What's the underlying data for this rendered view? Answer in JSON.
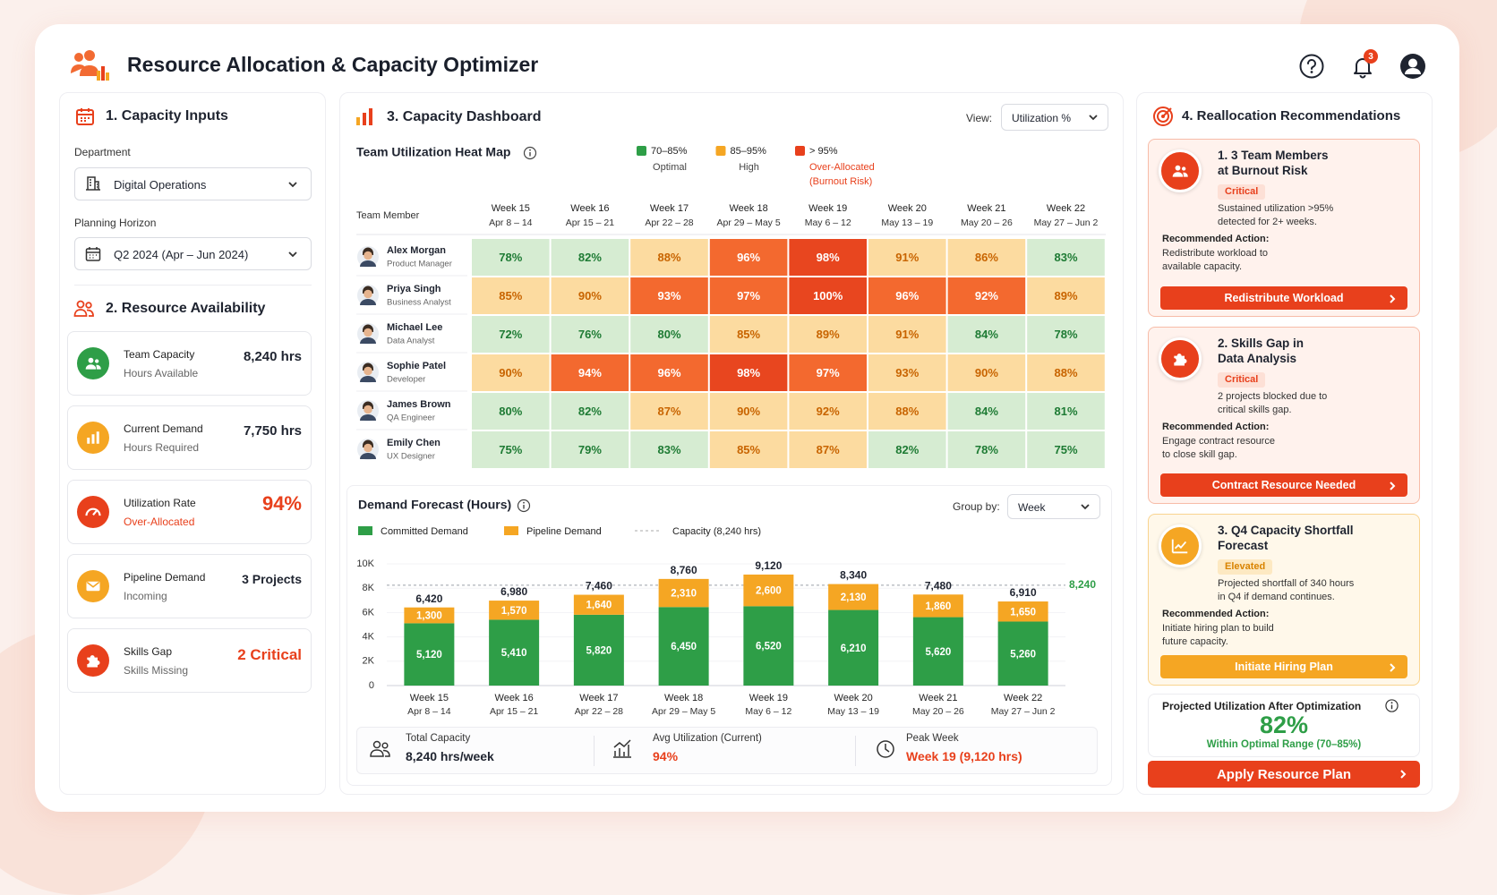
{
  "header": {
    "title": "Resource Allocation & Capacity Optimizer",
    "notifications": "3"
  },
  "inputs": {
    "title": "1. Capacity Inputs",
    "fields": [
      {
        "label": "Department",
        "value": "Digital Operations"
      },
      {
        "label": "Planning Horizon",
        "value": "Q2 2024 (Apr – Jun 2024)"
      }
    ]
  },
  "availability": {
    "title": "2. Resource Availability",
    "cards": [
      {
        "label": "Team Capacity",
        "sublabel": "Hours Available",
        "value": "8,240 hrs"
      },
      {
        "label": "Current Demand",
        "sublabel": "Hours Required",
        "value": "7,750 hrs"
      },
      {
        "label": "Utilization Rate",
        "sublabel": "Over-Allocated",
        "value": "94%"
      },
      {
        "label": "Pipeline Demand",
        "sublabel": "Incoming",
        "value": "3 Projects"
      },
      {
        "label": "Skills Gap",
        "sublabel": "Skills Missing",
        "value": "2 Critical"
      }
    ]
  },
  "dashboard": {
    "title": "3. Capacity Dashboard",
    "view_label": "View:",
    "view": "Utilization %"
  },
  "chart_data": [
    {
      "type": "heatmap",
      "title": "Team Utilization Heat Map",
      "row_header": "Team Member",
      "legend": [
        {
          "color": "#2e9e47",
          "label": "70–85%",
          "sublabel": [
            "Optimal"
          ]
        },
        {
          "color": "#f5a623",
          "label": "85–95%",
          "sublabel": [
            "High"
          ]
        },
        {
          "color": "#e8401c",
          "label": "> 95%",
          "sublabel": [
            "Over-Allocated",
            "(Burnout Risk)"
          ]
        }
      ],
      "columns": [
        "Week 15",
        "Week 16",
        "Week 17",
        "Week 18",
        "Week 19",
        "Week 20",
        "Week 21",
        "Week 22"
      ],
      "column_sublabels": [
        "Apr 8 – 14",
        "Apr 15 – 21",
        "Apr 22 – 28",
        "Apr 29 – May 5",
        "May 6 – 12",
        "May 13 – 19",
        "May 20 – 26",
        "May 27 – Jun 2"
      ],
      "rows": [
        {
          "name": "Alex Morgan",
          "role": "Product Manager"
        },
        {
          "name": "Priya Singh",
          "role": "Business Analyst"
        },
        {
          "name": "Michael Lee",
          "role": "Data Analyst"
        },
        {
          "name": "Sophie Patel",
          "role": "Developer"
        },
        {
          "name": "James Brown",
          "role": "QA Engineer"
        },
        {
          "name": "Emily Chen",
          "role": "UX Designer"
        }
      ],
      "values": [
        [
          78,
          82,
          88,
          96,
          98,
          91,
          86,
          83
        ],
        [
          85,
          90,
          93,
          97,
          100,
          96,
          92,
          89
        ],
        [
          72,
          76,
          80,
          85,
          89,
          91,
          84,
          78
        ],
        [
          90,
          94,
          96,
          98,
          97,
          93,
          90,
          88
        ],
        [
          80,
          82,
          87,
          90,
          92,
          88,
          84,
          81
        ],
        [
          75,
          79,
          83,
          85,
          87,
          82,
          78,
          75
        ]
      ],
      "value_labels": [
        [
          "78%",
          "82%",
          "88%",
          "96%",
          "98%",
          "91%",
          "86%",
          "83%"
        ],
        [
          "85%",
          "90%",
          "93%",
          "97%",
          "100%",
          "96%",
          "92%",
          "89%"
        ],
        [
          "72%",
          "76%",
          "80%",
          "85%",
          "89%",
          "91%",
          "84%",
          "78%"
        ],
        [
          "90%",
          "94%",
          "96%",
          "98%",
          "97%",
          "93%",
          "90%",
          "88%"
        ],
        [
          "80%",
          "82%",
          "87%",
          "90%",
          "92%",
          "88%",
          "84%",
          "81%"
        ],
        [
          "75%",
          "79%",
          "83%",
          "85%",
          "87%",
          "82%",
          "78%",
          "75%"
        ]
      ],
      "colors": [
        [
          "#d6ecd2",
          "#d6ecd2",
          "#fcdba0",
          "#f3692f",
          "#e8461f",
          "#fcdba0",
          "#fcdba0",
          "#d6ecd2"
        ],
        [
          "#fcdba0",
          "#fcdba0",
          "#f3692f",
          "#f3692f",
          "#e8461f",
          "#f3692f",
          "#f3692f",
          "#fcdba0"
        ],
        [
          "#d6ecd2",
          "#d6ecd2",
          "#d6ecd2",
          "#fcdba0",
          "#fcdba0",
          "#fcdba0",
          "#d6ecd2",
          "#d6ecd2"
        ],
        [
          "#fcdba0",
          "#f3692f",
          "#f3692f",
          "#e8461f",
          "#f3692f",
          "#fcdba0",
          "#fcdba0",
          "#fcdba0"
        ],
        [
          "#d6ecd2",
          "#d6ecd2",
          "#fcdba0",
          "#fcdba0",
          "#fcdba0",
          "#fcdba0",
          "#d6ecd2",
          "#d6ecd2"
        ],
        [
          "#d6ecd2",
          "#d6ecd2",
          "#d6ecd2",
          "#fcdba0",
          "#fcdba0",
          "#d6ecd2",
          "#d6ecd2",
          "#d6ecd2"
        ]
      ]
    },
    {
      "type": "stacked_bar",
      "title": "Demand Forecast (Hours)",
      "group_by_label": "Group by:",
      "group_by": "Week",
      "categories": [
        "Week 15",
        "Week 16",
        "Week 17",
        "Week 18",
        "Week 19",
        "Week 20",
        "Week 21",
        "Week 22"
      ],
      "category_sublabels": [
        "Apr 8 – 14",
        "Apr 15 – 21",
        "Apr 22 – 28",
        "Apr 29 – May 5",
        "May 6 – 12",
        "May 13 – 19",
        "May 20 – 26",
        "May 27 – Jun 2"
      ],
      "series": [
        {
          "name": "Committed Demand",
          "color": "#2e9e47",
          "values": [
            5120,
            5410,
            5820,
            6450,
            6520,
            6210,
            5620,
            5260
          ],
          "value_labels": [
            "5,120",
            "5,410",
            "5,820",
            "6,450",
            "6,520",
            "6,210",
            "5,620",
            "5,260"
          ]
        },
        {
          "name": "Pipeline Demand",
          "color": "#f5a623",
          "values": [
            1300,
            1570,
            1640,
            2310,
            2600,
            2130,
            1860,
            1650
          ],
          "value_labels": [
            "1,300",
            "1,570",
            "1,640",
            "2,310",
            "2,600",
            "2,130",
            "1,860",
            "1,650"
          ]
        }
      ],
      "total_labels": [
        "6,420",
        "6,980",
        "7,460",
        "8,760",
        "9,120",
        "8,340",
        "7,480",
        "6,910"
      ],
      "capacity": {
        "name": "Capacity (8,240 hrs)",
        "value": 8240,
        "label": "8,240",
        "color": "#2e9e47"
      },
      "ylim": [
        0,
        10000
      ],
      "yticks": [
        0,
        {
          "value": 2000,
          "label": "2K"
        },
        {
          "value": 4000,
          "label": "4K"
        },
        {
          "value": 6000,
          "label": "6K"
        },
        {
          "value": 8000,
          "label": "8K"
        },
        {
          "value": 10000,
          "label": "10K"
        }
      ],
      "grid": true
    }
  ],
  "summary": [
    {
      "label": "Total Capacity",
      "value": "8,240 hrs/week"
    },
    {
      "label": "Avg Utilization (Current)",
      "value": "94%"
    },
    {
      "label": "Peak Week",
      "value": "Week 19 (9,120 hrs)"
    }
  ],
  "recommendations": {
    "title": "4. Reallocation Recommendations",
    "cards": [
      {
        "title": [
          "1. 3 Team Members",
          "at Burnout Risk"
        ],
        "severity": "Critical",
        "detail": [
          "Sustained utilization >95%",
          "detected for 2+ weeks."
        ],
        "action_label": "Recommended Action:",
        "action": [
          "Redistribute workload to",
          "available capacity."
        ],
        "button": "Redistribute Workload"
      },
      {
        "title": [
          "2. Skills Gap in",
          "Data Analysis"
        ],
        "severity": "Critical",
        "detail": [
          "2 projects blocked due to",
          "critical skills gap."
        ],
        "action_label": "Recommended Action:",
        "action": [
          "Engage contract resource",
          "to close skill gap."
        ],
        "button": "Contract Resource Needed"
      },
      {
        "title": [
          "3. Q4 Capacity Shortfall",
          "Forecast"
        ],
        "severity": "Elevated",
        "detail": [
          "Projected shortfall of 340 hours",
          "in Q4 if demand continues."
        ],
        "action_label": "Recommended Action:",
        "action": [
          "Initiate hiring plan to build",
          "future capacity."
        ],
        "button": "Initiate Hiring Plan"
      }
    ]
  },
  "projection": {
    "label": "Projected Utilization After Optimization",
    "value": "82%",
    "note": "Within Optimal Range (70–85%)",
    "button": "Apply Resource Plan"
  }
}
